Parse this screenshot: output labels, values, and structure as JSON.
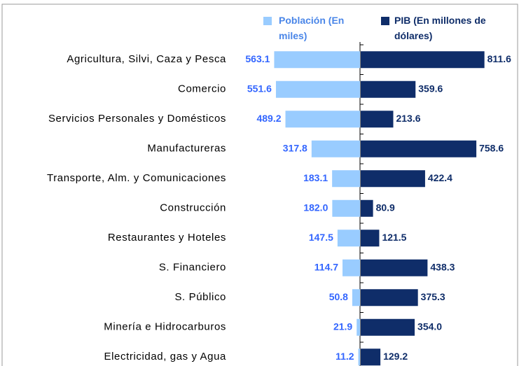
{
  "chart_data": {
    "type": "butterfly-bar",
    "categories": [
      "Agricultura, Silvi, Caza y Pesca",
      "Comercio",
      "Servicios Personales y Domésticos",
      "Manufactureras",
      "Transporte, Alm. y Comunicaciones",
      "Construcción",
      "Restaurantes y Hoteles",
      "S. Financiero",
      "S. Público",
      "Minería e Hidrocarburos",
      "Electricidad, gas y Agua"
    ],
    "series": [
      {
        "name": "Población (En miles)",
        "color": "#99ccff",
        "label_color": "#3366ff",
        "side": "left",
        "values": [
          563.1,
          551.6,
          489.2,
          317.8,
          183.1,
          182.0,
          147.5,
          114.7,
          50.8,
          21.9,
          11.2
        ],
        "value_labels": [
          "563.1",
          "551.6",
          "489.2",
          "317.8",
          "183.1",
          "182.0",
          "147.5",
          "114.7",
          "50.8",
          "21.9",
          "11.2"
        ]
      },
      {
        "name": "PIB (En millones de dólares)",
        "color": "#0f2d69",
        "label_color": "#0f2d69",
        "side": "right",
        "values": [
          811.6,
          359.6,
          213.6,
          758.6,
          422.4,
          80.9,
          121.5,
          438.3,
          375.3,
          354.0,
          129.2
        ],
        "value_labels": [
          "811.6",
          "359.6",
          "213.6",
          "758.6",
          "422.4",
          "80.9",
          "121.5",
          "438.3",
          "375.3",
          "354.0",
          "129.2"
        ]
      }
    ],
    "xlim": [
      0,
      850
    ]
  }
}
